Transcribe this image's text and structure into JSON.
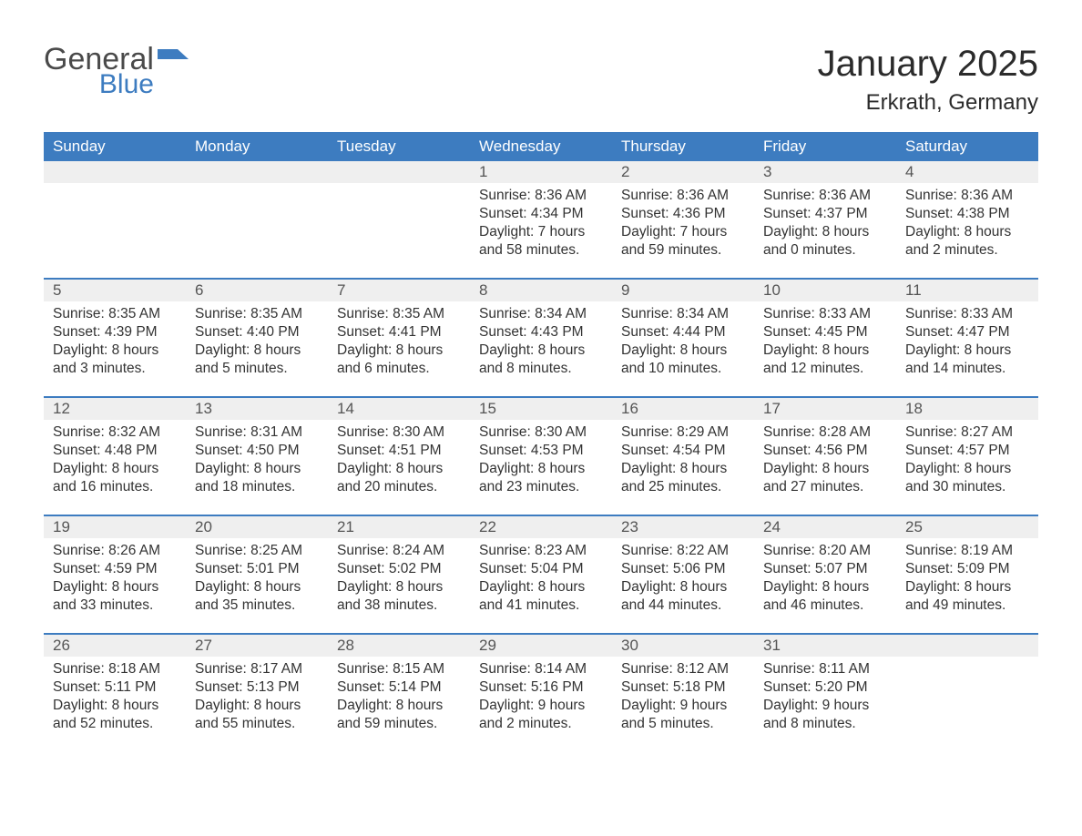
{
  "logo": {
    "general": "General",
    "blue": "Blue"
  },
  "title": "January 2025",
  "location": "Erkrath, Germany",
  "colors": {
    "header_bg": "#3d7cc0",
    "header_text": "#ffffff",
    "daynum_bg": "#efefef",
    "week_border": "#3d7cc0",
    "body_text": "#333333",
    "logo_gray": "#4a4a4a",
    "logo_blue": "#3d7cc0"
  },
  "typography": {
    "title_fontsize": 40,
    "location_fontsize": 24,
    "dayhead_fontsize": 17,
    "daynum_fontsize": 17,
    "body_fontsize": 15.5
  },
  "days_of_week": [
    "Sunday",
    "Monday",
    "Tuesday",
    "Wednesday",
    "Thursday",
    "Friday",
    "Saturday"
  ],
  "weeks": [
    [
      null,
      null,
      null,
      {
        "n": "1",
        "sunrise": "8:36 AM",
        "sunset": "4:34 PM",
        "daylight1": "Daylight: 7 hours",
        "daylight2": "and 58 minutes."
      },
      {
        "n": "2",
        "sunrise": "8:36 AM",
        "sunset": "4:36 PM",
        "daylight1": "Daylight: 7 hours",
        "daylight2": "and 59 minutes."
      },
      {
        "n": "3",
        "sunrise": "8:36 AM",
        "sunset": "4:37 PM",
        "daylight1": "Daylight: 8 hours",
        "daylight2": "and 0 minutes."
      },
      {
        "n": "4",
        "sunrise": "8:36 AM",
        "sunset": "4:38 PM",
        "daylight1": "Daylight: 8 hours",
        "daylight2": "and 2 minutes."
      }
    ],
    [
      {
        "n": "5",
        "sunrise": "8:35 AM",
        "sunset": "4:39 PM",
        "daylight1": "Daylight: 8 hours",
        "daylight2": "and 3 minutes."
      },
      {
        "n": "6",
        "sunrise": "8:35 AM",
        "sunset": "4:40 PM",
        "daylight1": "Daylight: 8 hours",
        "daylight2": "and 5 minutes."
      },
      {
        "n": "7",
        "sunrise": "8:35 AM",
        "sunset": "4:41 PM",
        "daylight1": "Daylight: 8 hours",
        "daylight2": "and 6 minutes."
      },
      {
        "n": "8",
        "sunrise": "8:34 AM",
        "sunset": "4:43 PM",
        "daylight1": "Daylight: 8 hours",
        "daylight2": "and 8 minutes."
      },
      {
        "n": "9",
        "sunrise": "8:34 AM",
        "sunset": "4:44 PM",
        "daylight1": "Daylight: 8 hours",
        "daylight2": "and 10 minutes."
      },
      {
        "n": "10",
        "sunrise": "8:33 AM",
        "sunset": "4:45 PM",
        "daylight1": "Daylight: 8 hours",
        "daylight2": "and 12 minutes."
      },
      {
        "n": "11",
        "sunrise": "8:33 AM",
        "sunset": "4:47 PM",
        "daylight1": "Daylight: 8 hours",
        "daylight2": "and 14 minutes."
      }
    ],
    [
      {
        "n": "12",
        "sunrise": "8:32 AM",
        "sunset": "4:48 PM",
        "daylight1": "Daylight: 8 hours",
        "daylight2": "and 16 minutes."
      },
      {
        "n": "13",
        "sunrise": "8:31 AM",
        "sunset": "4:50 PM",
        "daylight1": "Daylight: 8 hours",
        "daylight2": "and 18 minutes."
      },
      {
        "n": "14",
        "sunrise": "8:30 AM",
        "sunset": "4:51 PM",
        "daylight1": "Daylight: 8 hours",
        "daylight2": "and 20 minutes."
      },
      {
        "n": "15",
        "sunrise": "8:30 AM",
        "sunset": "4:53 PM",
        "daylight1": "Daylight: 8 hours",
        "daylight2": "and 23 minutes."
      },
      {
        "n": "16",
        "sunrise": "8:29 AM",
        "sunset": "4:54 PM",
        "daylight1": "Daylight: 8 hours",
        "daylight2": "and 25 minutes."
      },
      {
        "n": "17",
        "sunrise": "8:28 AM",
        "sunset": "4:56 PM",
        "daylight1": "Daylight: 8 hours",
        "daylight2": "and 27 minutes."
      },
      {
        "n": "18",
        "sunrise": "8:27 AM",
        "sunset": "4:57 PM",
        "daylight1": "Daylight: 8 hours",
        "daylight2": "and 30 minutes."
      }
    ],
    [
      {
        "n": "19",
        "sunrise": "8:26 AM",
        "sunset": "4:59 PM",
        "daylight1": "Daylight: 8 hours",
        "daylight2": "and 33 minutes."
      },
      {
        "n": "20",
        "sunrise": "8:25 AM",
        "sunset": "5:01 PM",
        "daylight1": "Daylight: 8 hours",
        "daylight2": "and 35 minutes."
      },
      {
        "n": "21",
        "sunrise": "8:24 AM",
        "sunset": "5:02 PM",
        "daylight1": "Daylight: 8 hours",
        "daylight2": "and 38 minutes."
      },
      {
        "n": "22",
        "sunrise": "8:23 AM",
        "sunset": "5:04 PM",
        "daylight1": "Daylight: 8 hours",
        "daylight2": "and 41 minutes."
      },
      {
        "n": "23",
        "sunrise": "8:22 AM",
        "sunset": "5:06 PM",
        "daylight1": "Daylight: 8 hours",
        "daylight2": "and 44 minutes."
      },
      {
        "n": "24",
        "sunrise": "8:20 AM",
        "sunset": "5:07 PM",
        "daylight1": "Daylight: 8 hours",
        "daylight2": "and 46 minutes."
      },
      {
        "n": "25",
        "sunrise": "8:19 AM",
        "sunset": "5:09 PM",
        "daylight1": "Daylight: 8 hours",
        "daylight2": "and 49 minutes."
      }
    ],
    [
      {
        "n": "26",
        "sunrise": "8:18 AM",
        "sunset": "5:11 PM",
        "daylight1": "Daylight: 8 hours",
        "daylight2": "and 52 minutes."
      },
      {
        "n": "27",
        "sunrise": "8:17 AM",
        "sunset": "5:13 PM",
        "daylight1": "Daylight: 8 hours",
        "daylight2": "and 55 minutes."
      },
      {
        "n": "28",
        "sunrise": "8:15 AM",
        "sunset": "5:14 PM",
        "daylight1": "Daylight: 8 hours",
        "daylight2": "and 59 minutes."
      },
      {
        "n": "29",
        "sunrise": "8:14 AM",
        "sunset": "5:16 PM",
        "daylight1": "Daylight: 9 hours",
        "daylight2": "and 2 minutes."
      },
      {
        "n": "30",
        "sunrise": "8:12 AM",
        "sunset": "5:18 PM",
        "daylight1": "Daylight: 9 hours",
        "daylight2": "and 5 minutes."
      },
      {
        "n": "31",
        "sunrise": "8:11 AM",
        "sunset": "5:20 PM",
        "daylight1": "Daylight: 9 hours",
        "daylight2": "and 8 minutes."
      },
      null
    ]
  ],
  "labels": {
    "sunrise_prefix": "Sunrise: ",
    "sunset_prefix": "Sunset: "
  }
}
